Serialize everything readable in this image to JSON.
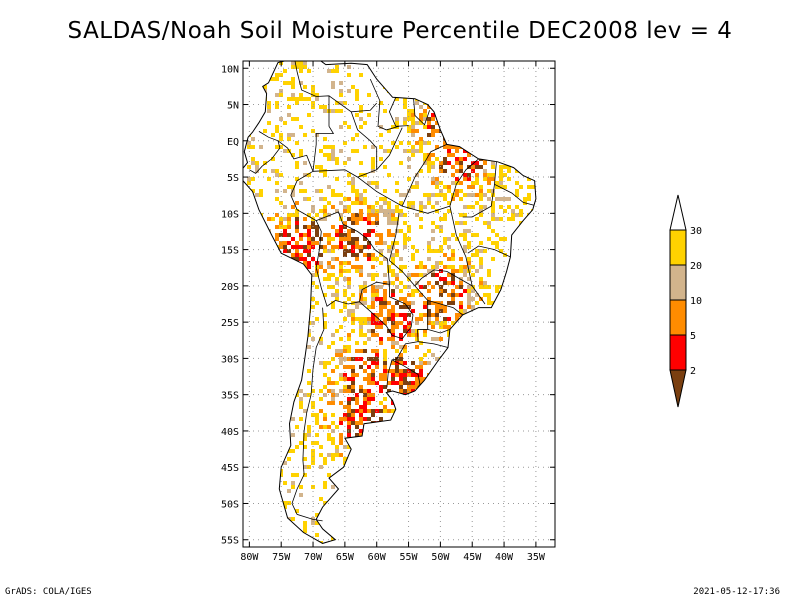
{
  "title": "SALDAS/Noah Soil Moisture Percentile DEC2008 lev = 4",
  "footer_left": "GrADS: COLA/IGES",
  "footer_right": "2021-05-12-17:36",
  "colors": {
    "dark_brown": "#7a3f10",
    "red": "#ff0000",
    "orange": "#ff8c00",
    "tan": "#d2b48c",
    "gold": "#ffd200",
    "white": "#ffffff"
  },
  "chart_data": {
    "type": "heatmap",
    "title": "SALDAS/Noah Soil Moisture Percentile DEC2008 lev = 4",
    "lon_range": [
      -81,
      -32
    ],
    "lat_range": [
      -56,
      11
    ],
    "lon_ticks": [
      -80,
      -75,
      -70,
      -65,
      -60,
      -55,
      -50,
      -45,
      -40,
      -35
    ],
    "lat_ticks": [
      10,
      5,
      0,
      -5,
      -10,
      -15,
      -20,
      -25,
      -30,
      -35,
      -40,
      -45,
      -50,
      -55
    ],
    "lon_tick_labels": [
      "80W",
      "75W",
      "70W",
      "65W",
      "60W",
      "55W",
      "50W",
      "45W",
      "40W",
      "35W"
    ],
    "lat_tick_labels": [
      "10N",
      "5N",
      "EQ",
      "5S",
      "10S",
      "15S",
      "20S",
      "25S",
      "30S",
      "35S",
      "40S",
      "45S",
      "50S",
      "55S"
    ],
    "grid": true,
    "legend": {
      "placement": "right",
      "labels": [
        "2",
        "5",
        "10",
        "20",
        "30"
      ],
      "bins": [
        {
          "upper": 2,
          "color": "#7a3f10"
        },
        {
          "upper": 5,
          "color": "#ff0000"
        },
        {
          "upper": 10,
          "color": "#ff8c00"
        },
        {
          "upper": 20,
          "color": "#d2b48c"
        },
        {
          "upper": 30,
          "color": "#ffd200"
        },
        {
          "upper": null,
          "color": "#ffffff"
        }
      ]
    },
    "coast": [
      [
        -77,
        8
      ],
      [
        -75.5,
        10.8
      ],
      [
        -72,
        11.5
      ],
      [
        -70,
        11.8
      ],
      [
        -68,
        10.5
      ],
      [
        -64,
        10.7
      ],
      [
        -61.5,
        10.5
      ],
      [
        -60,
        8.5
      ],
      [
        -57.5,
        6
      ],
      [
        -54,
        5.8
      ],
      [
        -52,
        5
      ],
      [
        -51,
        4
      ],
      [
        -50,
        1.5
      ],
      [
        -49,
        -0.5
      ],
      [
        -47,
        -0.8
      ],
      [
        -44,
        -2.5
      ],
      [
        -41,
        -2.9
      ],
      [
        -38.5,
        -3.7
      ],
      [
        -37,
        -4.8
      ],
      [
        -35.2,
        -5.5
      ],
      [
        -35,
        -8
      ],
      [
        -35.5,
        -9.5
      ],
      [
        -37,
        -11
      ],
      [
        -38.8,
        -13
      ],
      [
        -39,
        -16
      ],
      [
        -39.6,
        -18
      ],
      [
        -40.5,
        -20.5
      ],
      [
        -42,
        -23
      ],
      [
        -44,
        -23
      ],
      [
        -46.5,
        -24
      ],
      [
        -48.5,
        -26
      ],
      [
        -48.8,
        -28.5
      ],
      [
        -50.5,
        -30.5
      ],
      [
        -52.5,
        -33
      ],
      [
        -54,
        -34.5
      ],
      [
        -55.5,
        -35
      ],
      [
        -57.5,
        -34.5
      ],
      [
        -58.5,
        -34.7
      ],
      [
        -57.5,
        -35.8
      ],
      [
        -57,
        -37
      ],
      [
        -57.8,
        -38.5
      ],
      [
        -62,
        -39
      ],
      [
        -62.3,
        -40.7
      ],
      [
        -65,
        -41
      ],
      [
        -64,
        -42.5
      ],
      [
        -65.2,
        -45
      ],
      [
        -67.5,
        -46.5
      ],
      [
        -66,
        -48
      ],
      [
        -68.5,
        -50.5
      ],
      [
        -69.5,
        -52.2
      ],
      [
        -68.5,
        -53.5
      ],
      [
        -66.5,
        -55
      ],
      [
        -68.5,
        -55.5
      ],
      [
        -71.5,
        -54
      ],
      [
        -74,
        -52
      ],
      [
        -75.3,
        -48
      ],
      [
        -75,
        -45
      ],
      [
        -73.5,
        -42
      ],
      [
        -73.7,
        -39
      ],
      [
        -73,
        -36
      ],
      [
        -71.8,
        -33
      ],
      [
        -71.3,
        -30
      ],
      [
        -70.8,
        -27
      ],
      [
        -70.4,
        -23
      ],
      [
        -70.2,
        -18.5
      ],
      [
        -71.5,
        -17
      ],
      [
        -75,
        -15.5
      ],
      [
        -76.5,
        -13
      ],
      [
        -78.5,
        -9.5
      ],
      [
        -79.5,
        -7
      ],
      [
        -81,
        -5.5
      ],
      [
        -81.2,
        -4
      ],
      [
        -80.3,
        -3
      ],
      [
        -80.8,
        -1.5
      ],
      [
        -80.2,
        0.5
      ],
      [
        -79.5,
        1.2
      ],
      [
        -78.5,
        2.5
      ],
      [
        -77.5,
        4
      ],
      [
        -77.3,
        6.5
      ],
      [
        -77.9,
        7.5
      ],
      [
        -77,
        8
      ]
    ],
    "borders": [
      [
        [
          -73,
          11.8
        ],
        [
          -72.5,
          9.5
        ],
        [
          -71.8,
          7
        ],
        [
          -69.5,
          6.1
        ],
        [
          -67.5,
          6.2
        ],
        [
          -67.5,
          2
        ],
        [
          -66.8,
          1
        ],
        [
          -69.5,
          1
        ],
        [
          -69.5,
          -0.5
        ],
        [
          -70,
          -4.2
        ]
      ],
      [
        [
          -78.5,
          1.3
        ],
        [
          -77,
          0.5
        ],
        [
          -75.5,
          0
        ],
        [
          -75.2,
          -1
        ],
        [
          -76.5,
          -2.5
        ],
        [
          -78,
          -3.5
        ],
        [
          -79,
          -4.5
        ],
        [
          -80,
          -4
        ]
      ],
      [
        [
          -75.5,
          0
        ],
        [
          -74,
          -1
        ],
        [
          -73,
          -2.5
        ],
        [
          -71,
          -2
        ],
        [
          -70,
          -4.2
        ]
      ],
      [
        [
          -70,
          -4.2
        ],
        [
          -72.5,
          -5.5
        ],
        [
          -73.5,
          -7.5
        ],
        [
          -72.5,
          -9.5
        ],
        [
          -70.5,
          -10.5
        ],
        [
          -69.5,
          -11
        ],
        [
          -68.7,
          -12.5
        ],
        [
          -69,
          -15
        ],
        [
          -69.5,
          -17.5
        ]
      ],
      [
        [
          -67.5,
          6.2
        ],
        [
          -64,
          4
        ],
        [
          -61,
          4.2
        ],
        [
          -60,
          5.2
        ]
      ],
      [
        [
          -61,
          8.5
        ],
        [
          -59.5,
          5.5
        ],
        [
          -59.8,
          2
        ],
        [
          -58.5,
          1.5
        ],
        [
          -56.5,
          2
        ]
      ],
      [
        [
          -57,
          6
        ],
        [
          -58,
          4
        ],
        [
          -57,
          2
        ],
        [
          -55,
          2.1
        ]
      ],
      [
        [
          -54.2,
          5.8
        ],
        [
          -54,
          3.5
        ],
        [
          -52.5,
          2.2
        ],
        [
          -51.7,
          4.2
        ]
      ],
      [
        [
          -69.5,
          -11
        ],
        [
          -66,
          -9.8
        ],
        [
          -65.3,
          -11.5
        ],
        [
          -63,
          -12.5
        ],
        [
          -61.5,
          -13.5
        ],
        [
          -60.3,
          -15
        ],
        [
          -58.3,
          -16.3
        ],
        [
          -58,
          -19.8
        ],
        [
          -60,
          -19.5
        ],
        [
          -62.3,
          -20.5
        ],
        [
          -62.7,
          -22.2
        ],
        [
          -64.5,
          -22.5
        ],
        [
          -66.5,
          -22
        ],
        [
          -67.8,
          -22.8
        ],
        [
          -68.7,
          -20.3
        ],
        [
          -69.5,
          -17.5
        ]
      ],
      [
        [
          -62.7,
          -22.2
        ],
        [
          -61,
          -23.5
        ],
        [
          -58.5,
          -25.5
        ],
        [
          -57.6,
          -26.8
        ],
        [
          -56,
          -27.3
        ],
        [
          -54.6,
          -25.7
        ],
        [
          -54.3,
          -24
        ],
        [
          -55.5,
          -22.5
        ],
        [
          -58,
          -21.5
        ],
        [
          -58,
          -19.8
        ]
      ],
      [
        [
          -68.5,
          -23
        ],
        [
          -68.3,
          -26
        ],
        [
          -69.5,
          -28.5
        ],
        [
          -70,
          -31.5
        ],
        [
          -70.3,
          -35
        ],
        [
          -71,
          -37.5
        ],
        [
          -71.4,
          -40
        ],
        [
          -71.6,
          -44
        ],
        [
          -71.4,
          -46
        ],
        [
          -72.5,
          -48
        ],
        [
          -73.3,
          -50
        ],
        [
          -72.5,
          -51.5
        ],
        [
          -70,
          -52.2
        ],
        [
          -68.5,
          -52.4
        ]
      ],
      [
        [
          -53.6,
          -26
        ],
        [
          -53.5,
          -27.7
        ],
        [
          -55.5,
          -28
        ],
        [
          -56.9,
          -30.1
        ],
        [
          -57.6,
          -30.2
        ],
        [
          -58.2,
          -32
        ],
        [
          -58.4,
          -34
        ]
      ],
      [
        [
          -57.6,
          -30.2
        ],
        [
          -55.8,
          -31
        ],
        [
          -53.5,
          -32.2
        ],
        [
          -53.2,
          -33.6
        ],
        [
          -53.6,
          -34
        ]
      ],
      [
        [
          -70,
          -4.2
        ],
        [
          -65,
          -4
        ],
        [
          -63,
          -5
        ],
        [
          -60,
          -7
        ],
        [
          -56,
          -9
        ],
        [
          -52,
          -10
        ],
        [
          -48.5,
          -9
        ]
      ],
      [
        [
          -48.5,
          -9
        ],
        [
          -47.5,
          -13
        ],
        [
          -46,
          -16
        ],
        [
          -45,
          -20
        ],
        [
          -43,
          -22.5
        ]
      ],
      [
        [
          -56.5,
          -10
        ],
        [
          -57,
          -13
        ],
        [
          -58,
          -16.5
        ],
        [
          -56,
          -18
        ],
        [
          -54,
          -20
        ],
        [
          -52,
          -22
        ]
      ],
      [
        [
          -52,
          -22
        ],
        [
          -50,
          -22.5
        ],
        [
          -48,
          -23
        ],
        [
          -46.5,
          -24
        ]
      ],
      [
        [
          -45,
          -20
        ],
        [
          -47,
          -19
        ],
        [
          -49,
          -18
        ],
        [
          -51,
          -17.8
        ],
        [
          -53,
          -19
        ],
        [
          -54,
          -20
        ]
      ],
      [
        [
          -39,
          -16
        ],
        [
          -41.5,
          -15
        ],
        [
          -44,
          -14.5
        ],
        [
          -45.7,
          -15.5
        ]
      ],
      [
        [
          -41.2,
          -2.9
        ],
        [
          -41.5,
          -6
        ],
        [
          -42,
          -9
        ],
        [
          -45,
          -10.5
        ],
        [
          -46.5,
          -10.5
        ]
      ],
      [
        [
          -41.5,
          -6
        ],
        [
          -38.8,
          -7.2
        ],
        [
          -37,
          -8.5
        ],
        [
          -35.3,
          -8.9
        ]
      ],
      [
        [
          -44,
          -2.5
        ],
        [
          -46,
          -4
        ],
        [
          -47.5,
          -6
        ],
        [
          -48.5,
          -9
        ]
      ],
      [
        [
          -49,
          -0.5
        ],
        [
          -51.5,
          -1.5
        ],
        [
          -52.5,
          -3
        ],
        [
          -54,
          -5
        ],
        [
          -56,
          -9
        ]
      ],
      [
        [
          -56,
          1.8
        ],
        [
          -58,
          -2
        ],
        [
          -60,
          -4
        ],
        [
          -63,
          -5
        ]
      ],
      [
        [
          -64,
          4
        ],
        [
          -63,
          1.5
        ],
        [
          -61,
          0
        ],
        [
          -60,
          -1
        ],
        [
          -60,
          -4
        ]
      ],
      [
        [
          -52,
          -22
        ],
        [
          -52,
          -26
        ],
        [
          -53.6,
          -26
        ]
      ],
      [
        [
          -48.5,
          -26
        ],
        [
          -50,
          -26.5
        ],
        [
          -52,
          -26
        ],
        [
          -53.6,
          -26
        ]
      ],
      [
        [
          -48.8,
          -28.5
        ],
        [
          -51,
          -28
        ],
        [
          -53.5,
          -27.7
        ]
      ]
    ]
  }
}
